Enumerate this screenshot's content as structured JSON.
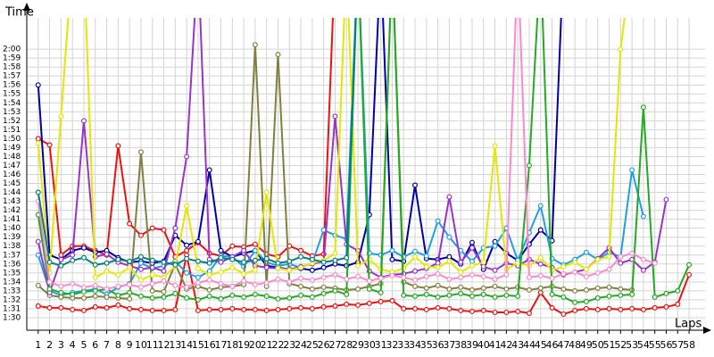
{
  "chart_data": {
    "type": "line",
    "x_label": "Laps",
    "y_label": "Time",
    "x": [
      1,
      2,
      3,
      4,
      5,
      6,
      7,
      8,
      9,
      10,
      11,
      12,
      13,
      14,
      15,
      16,
      17,
      18,
      19,
      20,
      21,
      22,
      23,
      24,
      25,
      26,
      27,
      28,
      29,
      30,
      31,
      32,
      33,
      34,
      35,
      36,
      37,
      38,
      39,
      40,
      41,
      42,
      43,
      44,
      45,
      46,
      47,
      48,
      49,
      50,
      51,
      52,
      53,
      54,
      55,
      56,
      57,
      58
    ],
    "xlim": [
      0,
      59.4
    ],
    "xticks": [
      1,
      2,
      3,
      4,
      5,
      6,
      7,
      8,
      9,
      10,
      11,
      12,
      13,
      14,
      15,
      16,
      17,
      18,
      19,
      20,
      21,
      22,
      23,
      24,
      25,
      26,
      27,
      28,
      29,
      30,
      31,
      32,
      33,
      34,
      35,
      36,
      37,
      38,
      39,
      40,
      41,
      42,
      43,
      44,
      45,
      46,
      47,
      48,
      49,
      50,
      51,
      52,
      53,
      54,
      55,
      56,
      57,
      58
    ],
    "ylim": [
      88.6,
      123.5
    ],
    "yticks": [
      {
        "value": 90,
        "label": "1:30"
      },
      {
        "value": 91,
        "label": "1:31"
      },
      {
        "value": 92,
        "label": "1:32"
      },
      {
        "value": 93,
        "label": "1:33"
      },
      {
        "value": 94,
        "label": "1:34"
      },
      {
        "value": 95,
        "label": "1:35"
      },
      {
        "value": 96,
        "label": "1:36"
      },
      {
        "value": 97,
        "label": "1:37"
      },
      {
        "value": 98,
        "label": "1:38"
      },
      {
        "value": 99,
        "label": "1:39"
      },
      {
        "value": 100,
        "label": "1:40"
      },
      {
        "value": 101,
        "label": "1:41"
      },
      {
        "value": 102,
        "label": "1:42"
      },
      {
        "value": 103,
        "label": "1:43"
      },
      {
        "value": 104,
        "label": "1:44"
      },
      {
        "value": 105,
        "label": "1:45"
      },
      {
        "value": 106,
        "label": "1:46"
      },
      {
        "value": 107,
        "label": "1:47"
      },
      {
        "value": 108,
        "label": "1:48"
      },
      {
        "value": 109,
        "label": "1:49"
      },
      {
        "value": 110,
        "label": "1:50"
      },
      {
        "value": 111,
        "label": "1:51"
      },
      {
        "value": 112,
        "label": "1:52"
      },
      {
        "value": 113,
        "label": "1:53"
      },
      {
        "value": 114,
        "label": "1:54"
      },
      {
        "value": 115,
        "label": "1:55"
      },
      {
        "value": 116,
        "label": "1:56"
      },
      {
        "value": 117,
        "label": "1:57"
      },
      {
        "value": 118,
        "label": "1:58"
      },
      {
        "value": 119,
        "label": "1:59"
      },
      {
        "value": 120,
        "label": "2:00"
      }
    ],
    "grid": true,
    "series": [
      {
        "color": "#ee1111",
        "values": [
          91.3,
          91.1,
          91.1,
          90.9,
          90.8,
          91.2,
          91.1,
          91.4,
          91.0,
          90.9,
          90.8,
          90.8,
          90.9,
          97.0,
          90.8,
          90.9,
          90.9,
          91.0,
          90.9,
          90.9,
          90.8,
          90.9,
          91.0,
          91.1,
          91.0,
          91.2,
          91.3,
          91.5,
          91.4,
          91.6,
          91.8,
          91.9,
          91.0,
          91.0,
          90.9,
          91.1,
          91.0,
          90.8,
          90.7,
          90.8,
          90.6,
          90.6,
          90.7,
          90.5,
          92.8,
          91.1,
          90.4,
          90.8,
          91.0,
          90.9,
          91.0,
          90.9,
          91.0,
          90.9,
          91.1,
          91.2,
          91.5,
          94.8
        ]
      },
      {
        "color": "#ee1111",
        "values": [
          110,
          109.3,
          97,
          98,
          98,
          97.5,
          97,
          109.2,
          100.5,
          99.2,
          100,
          99.8,
          96.8,
          97.5,
          98.4,
          97.2,
          96.9,
          98,
          97.9,
          98.2,
          97.1,
          96.8,
          98,
          97.5,
          96.9,
          97.1,
          130,
          null,
          null,
          null,
          null,
          null,
          null,
          null,
          null,
          null,
          null,
          null,
          null,
          null,
          null,
          null,
          null,
          null,
          null,
          null,
          null,
          null,
          null,
          null,
          null,
          null,
          null,
          null,
          null,
          null,
          null,
          null
        ]
      },
      {
        "color": "#0000aa",
        "values": [
          116,
          97,
          96.5,
          97.5,
          97.8,
          97.3,
          97.5,
          96.7,
          96.2,
          96.3,
          96.1,
          96.3,
          99.2,
          98.1,
          98.5,
          106.5,
          97.5,
          96.8,
          97.2,
          97.5,
          95.8,
          95.6,
          95.4,
          95.5,
          95.3,
          95.6,
          96.0,
          95.8,
          96.2,
          101.5,
          130,
          96.5,
          96.3,
          104.8,
          96.6,
          96.5,
          96.8,
          96.0,
          98.4,
          95.4,
          98.5,
          97.2,
          96.4,
          98.2,
          99.8,
          98.6,
          130,
          null,
          null,
          null,
          null,
          null,
          null,
          null,
          null,
          null,
          null,
          null
        ]
      },
      {
        "color": "#1e9fe6",
        "values": [
          97,
          93,
          92.5,
          92.8,
          93,
          93.2,
          92.6,
          93.4,
          93.8,
          96.1,
          95.5,
          95.8,
          96.3,
          95,
          94.5,
          95.2,
          96.9,
          96.8,
          95.7,
          97.5,
          96.2,
          95.8,
          96,
          95.6,
          96.1,
          99.8,
          99.2,
          98.8,
          130,
          97.2,
          97,
          97.5,
          96.8,
          97.4,
          96.9,
          100.8,
          99,
          97.5,
          96.3,
          97.8,
          98,
          100,
          96.4,
          99.5,
          102.5,
          96.6,
          95.9,
          96.5,
          97.3,
          96.5,
          97.3,
          96.8,
          106.5,
          101.3,
          null,
          null,
          null,
          null
        ]
      },
      {
        "color": "#808040",
        "values": [
          93.6,
          92.5,
          92.3,
          92.2,
          92.2,
          92.4,
          92.3,
          92.2,
          92.1,
          108.5,
          93,
          92.9,
          96,
          93.2,
          93.5,
          93.1,
          93.4,
          93.5,
          93.7,
          120.5,
          93.5,
          119.4,
          93.8,
          93.5,
          93.2,
          93.4,
          93.3,
          93.1,
          93.2,
          93.5,
          93.8,
          130,
          94.0,
          93.5,
          93.3,
          93.6,
          93.2,
          93.4,
          93.1,
          93.3,
          93.5,
          93.2,
          93.4,
          93.1,
          93.3,
          93.5,
          93.2,
          93.0,
          93.1,
          93.3,
          93.4,
          93.2,
          93.1,
          null,
          null,
          null,
          null,
          null
        ]
      },
      {
        "color": "#9933cc",
        "values": [
          98.5,
          92.8,
          96.5,
          97,
          112,
          96.8,
          97.1,
          96.2,
          95.8,
          95.4,
          95.6,
          95.2,
          100,
          108,
          130,
          96.5,
          96.2,
          96.8,
          97.5,
          95.8,
          95.6,
          95.5,
          95.4,
          95.7,
          96,
          96.3,
          112.5,
          98.2,
          97.5,
          95.2,
          94.5,
          94.8,
          94.9,
          95.2,
          95.5,
          96.1,
          103.5,
          96.2,
          97.8,
          95.7,
          95.3,
          96.1,
          95.8,
          96.5,
          96,
          95.6,
          94.8,
          95.1,
          95.4,
          96.6,
          97.8,
          96.1,
          96.5,
          95.3,
          96.2,
          103.2,
          null,
          null
        ]
      },
      {
        "color": "#e6e600",
        "values": [
          109.5,
          95,
          112.5,
          130,
          130,
          94.5,
          95.2,
          94.8,
          95.6,
          94.2,
          94.8,
          94.5,
          95.8,
          102.5,
          95.5,
          94.8,
          95.1,
          95.6,
          94.9,
          95.3,
          104,
          95.5,
          95.3,
          95.6,
          96.1,
          96.4,
          97.2,
          130,
          95.8,
          96.5,
          95.4,
          95.1,
          95.5,
          96.8,
          95.7,
          95.6,
          96.3,
          95.1,
          95.8,
          96.2,
          109.2,
          95.4,
          96.1,
          95.8,
          96.7,
          95.3,
          95.7,
          96.2,
          95.4,
          96.5,
          96.8,
          120,
          130,
          null,
          null,
          null,
          null,
          null
        ]
      },
      {
        "color": "#22aa22",
        "values": [
          101.5,
          93.2,
          92.8,
          92.6,
          92.9,
          93,
          93.2,
          92.5,
          92.8,
          92.4,
          92.2,
          92.3,
          92.7,
          92.2,
          92.0,
          92.4,
          92.1,
          92.5,
          92.3,
          92.6,
          92.4,
          92.1,
          92.2,
          92.5,
          92.3,
          92.7,
          93,
          92.6,
          130,
          93.2,
          92.8,
          130,
          92.5,
          92.4,
          92.6,
          92.3,
          92.5,
          92.7,
          92.4,
          92.6,
          92.3,
          92.5,
          92.4,
          107,
          130,
          92.6,
          92.3,
          91.7,
          91.8,
          92.2,
          92.4,
          92.5,
          92.6,
          113.5,
          92.3,
          92.7,
          93,
          95.9
        ]
      },
      {
        "color": "#ff88cc",
        "values": [
          103,
          94,
          93.5,
          93.8,
          93.4,
          93.6,
          93.2,
          93.5,
          93.7,
          93.4,
          93.8,
          94.1,
          93.6,
          93.4,
          93.9,
          94.2,
          93.8,
          93.5,
          94.1,
          93.7,
          93.9,
          94.3,
          94,
          94.4,
          94.2,
          94.5,
          94.8,
          94.3,
          94.6,
          94.1,
          94.4,
          94.7,
          94.5,
          94.2,
          94.6,
          94.9,
          94.3,
          94.5,
          94.8,
          94.6,
          94.3,
          94.8,
          130,
          94.5,
          94.7,
          94.4,
          94.9,
          95.1,
          94.6,
          95,
          95.4,
          96.8,
          97.2,
          96.5,
          96.1,
          null,
          null,
          null
        ]
      },
      {
        "color": "#008080",
        "values": [
          104,
          96.2,
          95.8,
          96.4,
          96.7,
          95.9,
          96.1,
          96.5,
          96.3,
          96.8,
          96.4,
          96.2,
          95.9,
          96.6,
          96.3,
          96.1,
          96.7,
          96.5,
          96.2,
          96.4,
          96.6,
          96.1,
          96.3,
          96.8,
          96.5,
          96.2,
          96.4,
          96.7,
          130,
          null,
          null,
          null,
          null,
          null,
          null,
          null,
          null,
          null,
          null,
          null,
          null,
          null,
          null,
          null,
          null,
          null,
          null,
          null,
          null,
          null,
          null,
          null,
          null,
          null,
          null,
          null,
          null,
          null
        ]
      }
    ]
  }
}
